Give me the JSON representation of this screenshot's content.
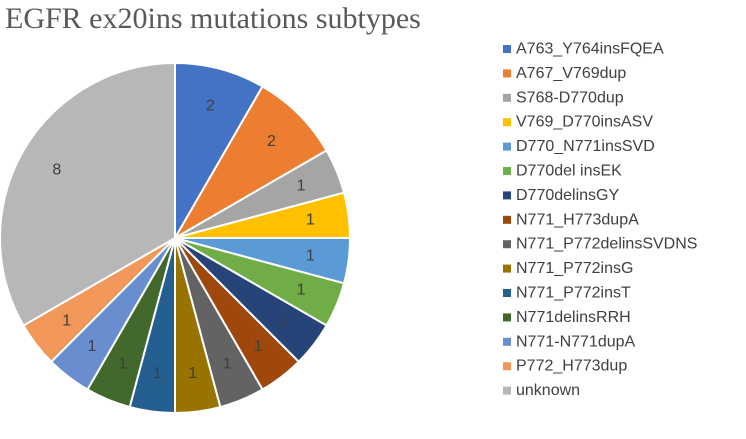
{
  "chart_data": {
    "type": "pie",
    "title": "EGFR ex20ins mutations subtypes",
    "legend_position": "right",
    "slices": [
      {
        "label": "A763_Y764insFQEA",
        "value": 2,
        "color": "#4472C4"
      },
      {
        "label": "A767_V769dup",
        "value": 2,
        "color": "#ED7D31"
      },
      {
        "label": "S768-D770dup",
        "value": 1,
        "color": "#A5A5A5"
      },
      {
        "label": "V769_D770insASV",
        "value": 1,
        "color": "#FFC000"
      },
      {
        "label": "D770_N771insSVD",
        "value": 1,
        "color": "#5B9BD5"
      },
      {
        "label": "D770del insEK",
        "value": 1,
        "color": "#70AD47"
      },
      {
        "label": "D770delinsGY",
        "value": 1,
        "color": "#264478"
      },
      {
        "label": "N771_H773dupA",
        "value": 1,
        "color": "#9E480E"
      },
      {
        "label": "N771_P772delinsSVDNS",
        "value": 1,
        "color": "#636363"
      },
      {
        "label": "N771_P772insG",
        "value": 1,
        "color": "#997300"
      },
      {
        "label": "N771_P772insT",
        "value": 1,
        "color": "#255E91"
      },
      {
        "label": "N771delinsRRH",
        "value": 1,
        "color": "#43682B"
      },
      {
        "label": "N771-N771dupA",
        "value": 1,
        "color": "#698ED0"
      },
      {
        "label": "P772_H773dup",
        "value": 1,
        "color": "#F1975A"
      },
      {
        "label": "unknown",
        "value": 8,
        "color": "#B7B7B7"
      }
    ]
  }
}
